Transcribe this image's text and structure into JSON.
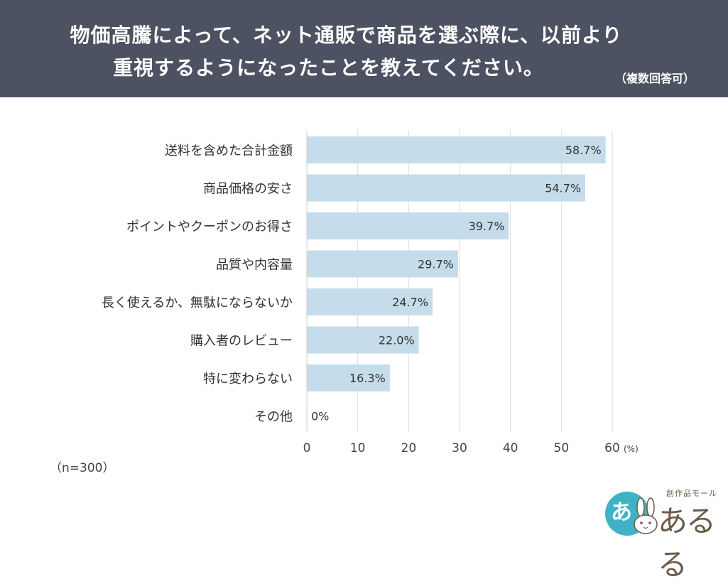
{
  "header": {
    "title_line1": "物価高騰によって、ネット通販で商品を選ぶ際に、以前より",
    "title_line2": "重視するようになったことを教えてください。",
    "note": "（複数回答可）"
  },
  "sample": "（n=300）",
  "logo": {
    "sub": "創作品モール",
    "main": "あるる",
    "small": "あ"
  },
  "colors": {
    "header_bg": "#4d5262",
    "bar": "#c5dcea",
    "grid": "#dddddd",
    "text": "#333333"
  },
  "chart_data": {
    "type": "bar",
    "orientation": "horizontal",
    "categories": [
      "送料を含めた合計金額",
      "商品価格の安さ",
      "ポイントやクーポンのお得さ",
      "品質や内容量",
      "長く使えるか、無駄にならないか",
      "購入者のレビュー",
      "特に変わらない",
      "その他"
    ],
    "values": [
      58.7,
      54.7,
      39.7,
      29.7,
      24.7,
      22.0,
      16.3,
      0
    ],
    "value_labels": [
      "58.7%",
      "54.7%",
      "39.7%",
      "29.7%",
      "24.7%",
      "22.0%",
      "16.3%",
      "0%"
    ],
    "xlim": [
      0,
      60
    ],
    "ticks": [
      0,
      10,
      20,
      30,
      40,
      50,
      60
    ],
    "tick_labels": [
      "0",
      "10",
      "20",
      "30",
      "40",
      "50",
      "60"
    ],
    "unit": "(%)",
    "grid": true
  }
}
